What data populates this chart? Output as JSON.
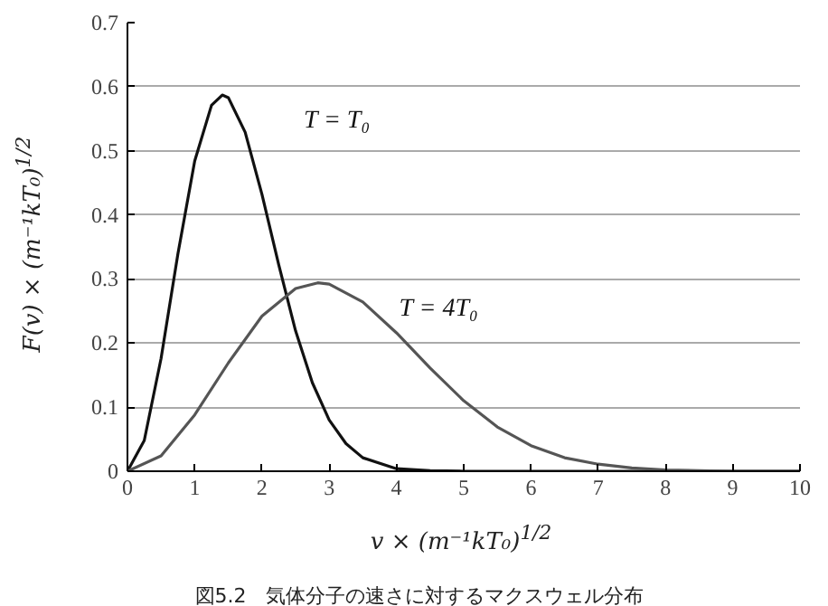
{
  "chart_data": {
    "type": "line",
    "xlabel": "v × (m⁻¹kT₀)$^{1/2}$",
    "ylabel": "F(v) × (m⁻¹kT₀)$^{1/2}$",
    "annotations": [
      "図5.2　気体分子の速さに対するマクスウェル分布"
    ],
    "series": [
      {
        "name": "T = T₀",
        "color": "#111111",
        "x": [
          0,
          0.25,
          0.5,
          0.75,
          1,
          1.25,
          1.41,
          1.5,
          1.75,
          2,
          2.25,
          2.5,
          2.75,
          3,
          3.25,
          3.5,
          4,
          4.5,
          5,
          6,
          8,
          10
        ],
        "values": [
          0,
          0.048,
          0.176,
          0.339,
          0.484,
          0.571,
          0.587,
          0.583,
          0.529,
          0.432,
          0.322,
          0.219,
          0.138,
          0.08,
          0.043,
          0.021,
          0.004,
          0.001,
          0,
          0,
          0,
          0
        ]
      },
      {
        "name": "T = 4T₀",
        "color": "#555555",
        "x": [
          0,
          0.5,
          1,
          1.5,
          2,
          2.5,
          2.83,
          3,
          3.5,
          4,
          4.5,
          5,
          5.5,
          6,
          6.5,
          7,
          7.5,
          8,
          8.5,
          9,
          10
        ],
        "values": [
          0,
          0.024,
          0.088,
          0.169,
          0.242,
          0.285,
          0.294,
          0.292,
          0.264,
          0.216,
          0.161,
          0.11,
          0.069,
          0.04,
          0.021,
          0.011,
          0.005,
          0.002,
          0.001,
          0,
          0
        ]
      }
    ],
    "xlim": [
      0,
      10
    ],
    "xticks": [
      0,
      1,
      2,
      3,
      4,
      5,
      6,
      7,
      8,
      9,
      10
    ],
    "ylim": [
      0,
      0.7
    ],
    "yticks": [
      0,
      0.1,
      0.2,
      0.3,
      0.4,
      0.5,
      0.6,
      0.7
    ],
    "grid": "y",
    "legend": false,
    "marker": "none",
    "line_style": "solid"
  }
}
